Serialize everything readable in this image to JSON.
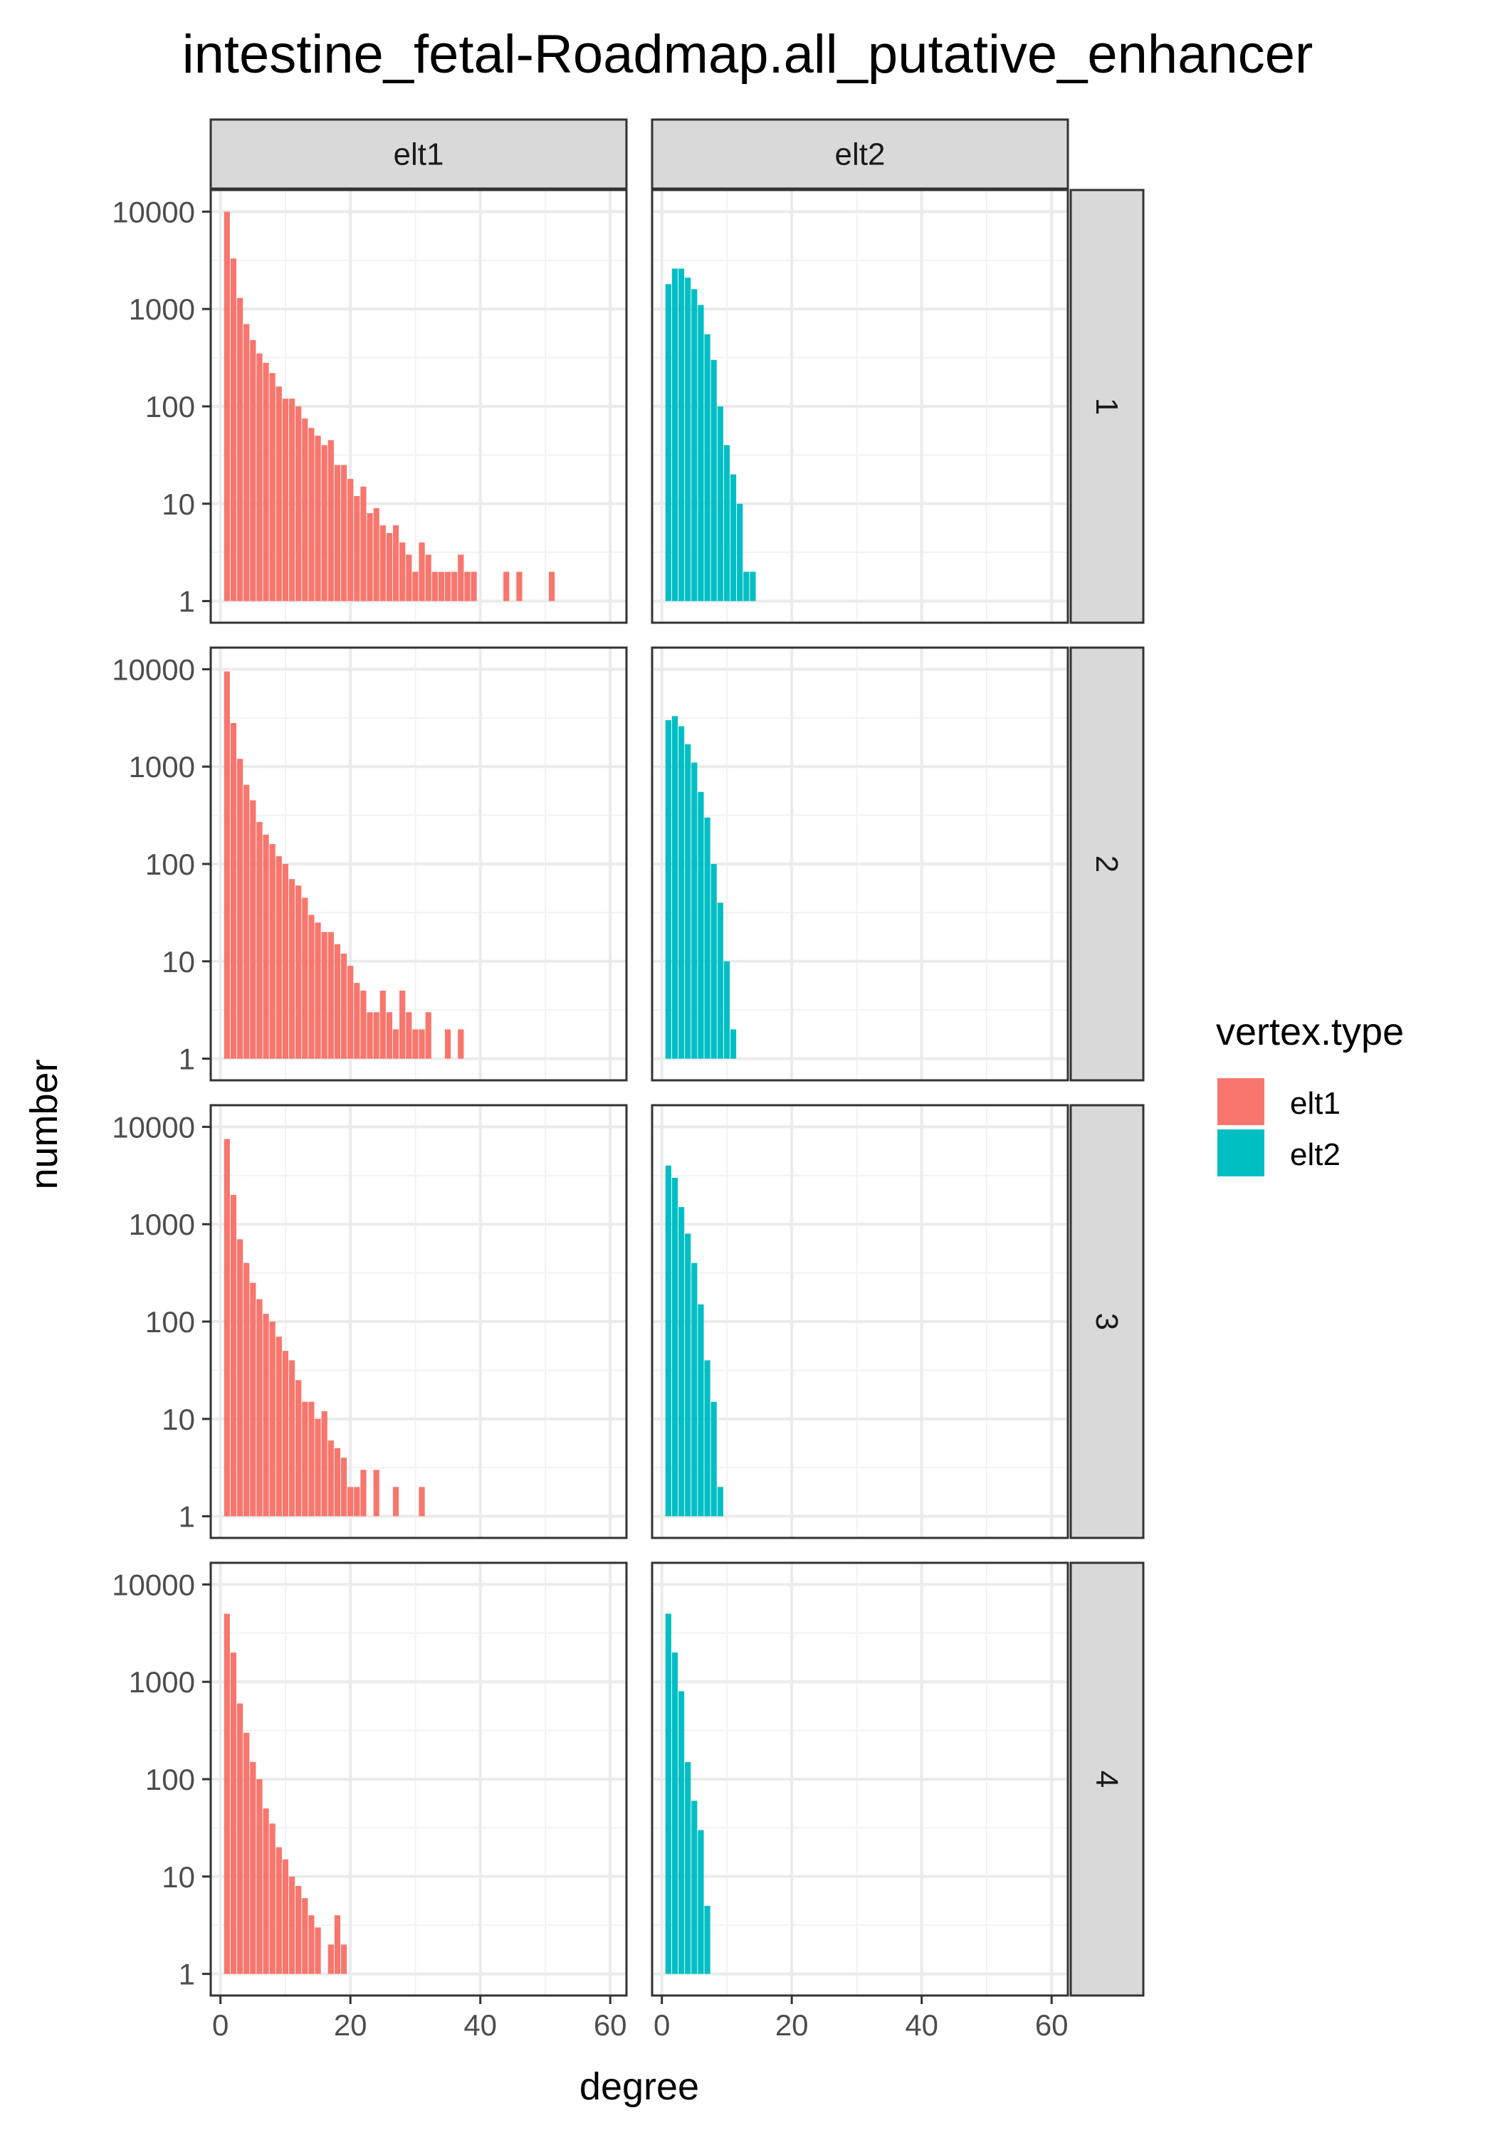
{
  "chart_data": {
    "type": "bar",
    "title": "intestine_fetal-Roadmap.all_putative_enhancer",
    "xlabel": "degree",
    "ylabel": "number",
    "y_scale": "log10",
    "ylim": [
      1,
      10000
    ],
    "xlim": [
      0,
      60
    ],
    "x_ticks": [
      "0",
      "20",
      "40",
      "60"
    ],
    "y_ticks": [
      "1",
      "10",
      "100",
      "1000",
      "10000"
    ],
    "grid": true,
    "columns": [
      "elt1",
      "elt2"
    ],
    "rows": [
      "1",
      "2",
      "3",
      "4"
    ],
    "legend": {
      "title": "vertex.type",
      "placement": "right",
      "items": [
        {
          "label": "elt1",
          "color": "#F8766D"
        },
        {
          "label": "elt2",
          "color": "#00BFC4"
        }
      ]
    },
    "panels": [
      {
        "row": "1",
        "column": "elt1",
        "x": [
          1,
          2,
          3,
          4,
          5,
          6,
          7,
          8,
          9,
          10,
          11,
          12,
          13,
          14,
          15,
          16,
          17,
          18,
          19,
          20,
          21,
          22,
          23,
          24,
          25,
          26,
          27,
          28,
          29,
          30,
          31,
          32,
          33,
          34,
          35,
          36,
          37,
          38,
          39,
          40,
          44,
          46,
          51
        ],
        "values": [
          10000,
          3300,
          1300,
          700,
          480,
          350,
          280,
          220,
          160,
          120,
          120,
          100,
          75,
          60,
          50,
          40,
          45,
          25,
          25,
          18,
          12,
          15,
          8,
          9,
          6,
          5,
          6,
          4,
          3,
          2,
          4,
          3,
          2,
          2,
          2,
          2,
          3,
          2,
          2,
          1,
          2,
          2,
          2
        ]
      },
      {
        "row": "1",
        "column": "elt2",
        "x": [
          1,
          2,
          3,
          4,
          5,
          6,
          7,
          8,
          9,
          10,
          11,
          12,
          13,
          14
        ],
        "values": [
          1800,
          2600,
          2600,
          2100,
          1600,
          1100,
          550,
          300,
          100,
          40,
          20,
          10,
          2,
          2
        ]
      },
      {
        "row": "2",
        "column": "elt1",
        "x": [
          1,
          2,
          3,
          4,
          5,
          6,
          7,
          8,
          9,
          10,
          11,
          12,
          13,
          14,
          15,
          16,
          17,
          18,
          19,
          20,
          21,
          22,
          23,
          24,
          25,
          26,
          27,
          28,
          29,
          30,
          31,
          32,
          33,
          34,
          35,
          36,
          37,
          38,
          39,
          40,
          44
        ],
        "values": [
          9500,
          2800,
          1200,
          650,
          450,
          270,
          200,
          160,
          120,
          100,
          70,
          60,
          45,
          30,
          25,
          20,
          20,
          15,
          12,
          9,
          6,
          5,
          3,
          3,
          5,
          3,
          2,
          5,
          3,
          2,
          2,
          3,
          1,
          1,
          2,
          1,
          2,
          1,
          1,
          1,
          1
        ]
      },
      {
        "row": "2",
        "column": "elt2",
        "x": [
          1,
          2,
          3,
          4,
          5,
          6,
          7,
          8,
          9,
          10,
          11,
          12
        ],
        "values": [
          3000,
          3300,
          2600,
          1700,
          1100,
          550,
          300,
          100,
          40,
          10,
          2,
          1
        ]
      },
      {
        "row": "3",
        "column": "elt1",
        "x": [
          1,
          2,
          3,
          4,
          5,
          6,
          7,
          8,
          9,
          10,
          11,
          12,
          13,
          14,
          15,
          16,
          17,
          18,
          19,
          20,
          21,
          22,
          23,
          24,
          25,
          26,
          27,
          28,
          29,
          30,
          31,
          32,
          33
        ],
        "values": [
          7500,
          2000,
          700,
          400,
          250,
          170,
          120,
          100,
          70,
          50,
          40,
          25,
          15,
          15,
          10,
          12,
          6,
          5,
          4,
          2,
          2,
          3,
          1,
          3,
          1,
          1,
          2,
          1,
          1,
          1,
          2,
          1,
          1
        ]
      },
      {
        "row": "3",
        "column": "elt2",
        "x": [
          1,
          2,
          3,
          4,
          5,
          6,
          7,
          8,
          9,
          10
        ],
        "values": [
          4000,
          3000,
          1500,
          800,
          400,
          150,
          40,
          15,
          2,
          1
        ]
      },
      {
        "row": "4",
        "column": "elt1",
        "x": [
          1,
          2,
          3,
          4,
          5,
          6,
          7,
          8,
          9,
          10,
          11,
          12,
          13,
          14,
          15,
          16,
          17,
          18,
          19
        ],
        "values": [
          5000,
          2000,
          600,
          300,
          150,
          100,
          50,
          35,
          20,
          15,
          10,
          8,
          6,
          4,
          3,
          1,
          2,
          4,
          2
        ]
      },
      {
        "row": "4",
        "column": "elt2",
        "x": [
          1,
          2,
          3,
          4,
          5,
          6,
          7
        ],
        "values": [
          5000,
          2000,
          800,
          150,
          60,
          30,
          5
        ]
      }
    ]
  }
}
